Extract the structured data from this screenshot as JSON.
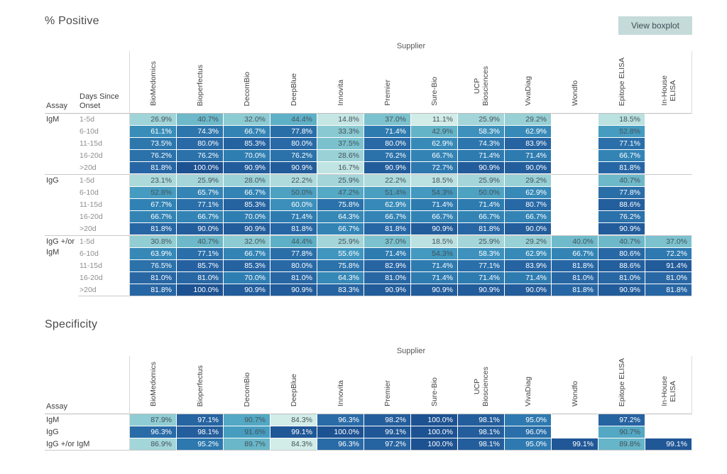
{
  "toolbar": {
    "view_boxplot_label": "View boxplot"
  },
  "colors": {
    "button_bg": "#c4dbd9",
    "button_text": "#3e4d53",
    "title_text": "#4b4b4b",
    "column_header_text": "#434343",
    "days_label_text": "#8e8e8e",
    "cell_text_dark": "#44525a",
    "cell_text_light": "#ffffff",
    "group_line": "#c9c9c9",
    "axis_line": "#d9d9d9"
  },
  "chart_data": [
    {
      "type": "heatmap",
      "title": "% Positive",
      "x_label": "Supplier",
      "row_header": {
        "assay": "Assay",
        "days": "Days Since Onset"
      },
      "columns": [
        "BioMedomics",
        "Bioperfectus",
        "DecomBio",
        "DeepBlue",
        "Innovita",
        "Premier",
        "Sure-Bio",
        "UCP Biosciences",
        "VivaDiag",
        "Wondfo",
        "Epitope ELISA",
        "In-House ELISA"
      ],
      "column_lines": [
        [
          "BioMedomics"
        ],
        [
          "Bioperfectus"
        ],
        [
          "DecomBio"
        ],
        [
          "DeepBlue"
        ],
        [
          "Innovita"
        ],
        [
          "Premier"
        ],
        [
          "Sure-Bio"
        ],
        [
          "UCP",
          "Biosciences"
        ],
        [
          "VivaDiag"
        ],
        [
          "Wondfo"
        ],
        [
          "Epitope ELISA"
        ],
        [
          "In-House",
          "ELISA"
        ]
      ],
      "value_format": "percent_1dp",
      "null_cells": "blank",
      "color_scale": {
        "palette": "blue-teal-sequential",
        "domain": [
          11.1,
          100
        ],
        "stops": [
          [
            0,
            "#d2ece8"
          ],
          [
            0.15,
            "#a8d8da"
          ],
          [
            0.3,
            "#79c1cd"
          ],
          [
            0.4,
            "#55aac5"
          ],
          [
            0.5,
            "#4096be"
          ],
          [
            0.65,
            "#3080b3"
          ],
          [
            0.8,
            "#2765a3"
          ],
          [
            1,
            "#1d5292"
          ]
        ],
        "label_light_threshold": 0.5
      },
      "row_groups": [
        {
          "assay": "IgM",
          "assay_lines": [
            "IgM"
          ],
          "rows": [
            {
              "days": "1-5d",
              "values": [
                26.9,
                40.7,
                32.0,
                44.4,
                14.8,
                37.0,
                11.1,
                25.9,
                29.2,
                null,
                18.5,
                null
              ]
            },
            {
              "days": "6-10d",
              "values": [
                61.1,
                74.3,
                66.7,
                77.8,
                33.3,
                71.4,
                42.9,
                58.3,
                62.9,
                null,
                52.8,
                null
              ]
            },
            {
              "days": "11-15d",
              "values": [
                73.5,
                80.0,
                85.3,
                80.0,
                37.5,
                80.0,
                62.9,
                74.3,
                83.9,
                null,
                77.1,
                null
              ]
            },
            {
              "days": "16-20d",
              "values": [
                76.2,
                76.2,
                70.0,
                76.2,
                28.6,
                76.2,
                66.7,
                71.4,
                71.4,
                null,
                66.7,
                null
              ]
            },
            {
              "days": ">20d",
              "values": [
                81.8,
                100.0,
                90.9,
                90.9,
                16.7,
                90.9,
                72.7,
                90.9,
                90.0,
                null,
                81.8,
                null
              ]
            }
          ]
        },
        {
          "assay": "IgG",
          "assay_lines": [
            "IgG"
          ],
          "rows": [
            {
              "days": "1-5d",
              "values": [
                23.1,
                25.9,
                28.0,
                22.2,
                25.9,
                22.2,
                18.5,
                25.9,
                29.2,
                null,
                40.7,
                null
              ]
            },
            {
              "days": "6-10d",
              "values": [
                52.8,
                65.7,
                66.7,
                50.0,
                47.2,
                51.4,
                54.3,
                50.0,
                62.9,
                null,
                77.8,
                null
              ]
            },
            {
              "days": "11-15d",
              "values": [
                67.7,
                77.1,
                85.3,
                60.0,
                75.8,
                62.9,
                71.4,
                71.4,
                80.7,
                null,
                88.6,
                null
              ]
            },
            {
              "days": "16-20d",
              "values": [
                66.7,
                66.7,
                70.0,
                71.4,
                64.3,
                66.7,
                66.7,
                66.7,
                66.7,
                null,
                76.2,
                null
              ]
            },
            {
              "days": ">20d",
              "values": [
                81.8,
                90.0,
                90.9,
                81.8,
                66.7,
                81.8,
                90.9,
                81.8,
                90.0,
                null,
                90.9,
                null
              ]
            }
          ]
        },
        {
          "assay": "IgG +/or IgM",
          "assay_lines": [
            "IgG +/or",
            "IgM"
          ],
          "rows": [
            {
              "days": "1-5d",
              "values": [
                30.8,
                40.7,
                32.0,
                44.4,
                25.9,
                37.0,
                18.5,
                25.9,
                29.2,
                40.0,
                40.7,
                37.0
              ]
            },
            {
              "days": "6-10d",
              "values": [
                63.9,
                77.1,
                66.7,
                77.8,
                55.6,
                71.4,
                54.3,
                58.3,
                62.9,
                66.7,
                80.6,
                72.2
              ]
            },
            {
              "days": "11-15d",
              "values": [
                76.5,
                85.7,
                85.3,
                80.0,
                75.8,
                82.9,
                71.4,
                77.1,
                83.9,
                81.8,
                88.6,
                91.4
              ]
            },
            {
              "days": "16-20d",
              "values": [
                81.0,
                81.0,
                70.0,
                81.0,
                64.3,
                81.0,
                71.4,
                71.4,
                71.4,
                81.0,
                81.0,
                81.0
              ]
            },
            {
              "days": ">20d",
              "values": [
                81.8,
                100.0,
                90.9,
                90.9,
                83.3,
                90.9,
                90.9,
                90.9,
                90.0,
                81.8,
                90.9,
                81.8
              ]
            }
          ]
        }
      ]
    },
    {
      "type": "heatmap",
      "title": "Specificity",
      "x_label": "Supplier",
      "row_header": {
        "assay": "Assay"
      },
      "columns": [
        "BioMedomics",
        "Bioperfectus",
        "DecomBio",
        "DeepBlue",
        "Innovita",
        "Premier",
        "Sure-Bio",
        "UCP Biosciences",
        "VivaDiag",
        "Wondfo",
        "Epitope ELISA",
        "In-House ELISA"
      ],
      "column_lines": [
        [
          "BioMedomics"
        ],
        [
          "Bioperfectus"
        ],
        [
          "DecomBio"
        ],
        [
          "DeepBlue"
        ],
        [
          "Innovita"
        ],
        [
          "Premier"
        ],
        [
          "Sure-Bio"
        ],
        [
          "UCP",
          "Biosciences"
        ],
        [
          "VivaDiag"
        ],
        [
          "Wondfo"
        ],
        [
          "Epitope ELISA"
        ],
        [
          "In-House",
          "ELISA"
        ]
      ],
      "value_format": "percent_1dp",
      "null_cells": "blank",
      "color_scale": {
        "palette": "blue-teal-sequential",
        "domain": [
          84.3,
          100
        ],
        "stops": [
          [
            0,
            "#d2ece8"
          ],
          [
            0.15,
            "#a8d8da"
          ],
          [
            0.3,
            "#79c1cd"
          ],
          [
            0.4,
            "#55aac5"
          ],
          [
            0.5,
            "#4096be"
          ],
          [
            0.65,
            "#3080b3"
          ],
          [
            0.8,
            "#2765a3"
          ],
          [
            1,
            "#1d5292"
          ]
        ],
        "label_light_threshold": 0.5
      },
      "rows": [
        {
          "assay": "IgM",
          "values": [
            87.9,
            97.1,
            90.7,
            84.3,
            96.3,
            98.2,
            100.0,
            98.1,
            95.0,
            null,
            97.2,
            null
          ]
        },
        {
          "assay": "IgG",
          "values": [
            96.3,
            98.1,
            91.6,
            99.1,
            100.0,
            99.1,
            100.0,
            98.1,
            96.0,
            null,
            90.7,
            null
          ]
        },
        {
          "assay": "IgG +/or IgM",
          "values": [
            86.9,
            95.2,
            89.7,
            84.3,
            96.3,
            97.2,
            100.0,
            98.1,
            95.0,
            99.1,
            89.8,
            99.1
          ]
        }
      ]
    }
  ]
}
